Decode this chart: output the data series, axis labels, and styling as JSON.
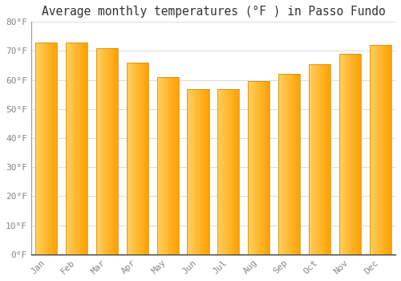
{
  "title": "Average monthly temperatures (°F ) in Passo Fundo",
  "months": [
    "Jan",
    "Feb",
    "Mar",
    "Apr",
    "May",
    "Jun",
    "Jul",
    "Aug",
    "Sep",
    "Oct",
    "Nov",
    "Dec"
  ],
  "values": [
    73.0,
    73.0,
    71.0,
    66.0,
    61.0,
    57.0,
    57.0,
    59.5,
    62.0,
    65.5,
    69.0,
    72.0
  ],
  "bar_color_left": "#FFD060",
  "bar_color_right": "#FFA000",
  "bar_outline_color": "#CC8800",
  "ylim": [
    0,
    80
  ],
  "yticks": [
    0,
    10,
    20,
    30,
    40,
    50,
    60,
    70,
    80
  ],
  "ytick_labels": [
    "0°F",
    "10°F",
    "20°F",
    "30°F",
    "40°F",
    "50°F",
    "60°F",
    "70°F",
    "80°F"
  ],
  "background_color": "#FFFFFF",
  "grid_color": "#DDDDDD",
  "title_fontsize": 10.5,
  "tick_fontsize": 8,
  "tick_color": "#888888",
  "bar_width": 0.72,
  "n_gradient_steps": 50
}
